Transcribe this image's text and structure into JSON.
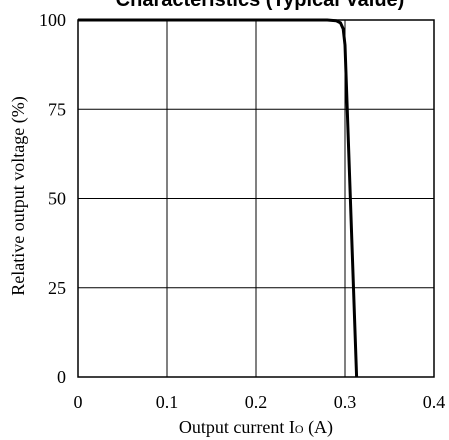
{
  "chart_data": {
    "type": "line",
    "title": "Characteristics (Typical Value)",
    "xlabel": "Output current Io (A)",
    "xlabel_main": "Output current I",
    "xlabel_sub": "O",
    "xlabel_unit": " (A)",
    "ylabel": "Relative output voltage (%)",
    "xlim": [
      0,
      0.4
    ],
    "ylim": [
      0,
      100
    ],
    "x_ticks": [
      0,
      0.1,
      0.2,
      0.3,
      0.4
    ],
    "x_tick_labels": [
      "0",
      "0.1",
      "0.2",
      "0.3",
      "0.4"
    ],
    "y_ticks": [
      0,
      25,
      50,
      75,
      100
    ],
    "y_tick_labels": [
      "0",
      "25",
      "50",
      "75",
      "100"
    ],
    "grid": true,
    "series": [
      {
        "x": [
          0,
          0.28,
          0.29,
          0.295,
          0.298,
          0.3,
          0.313
        ],
        "y": [
          100,
          100,
          99.8,
          99.2,
          97.5,
          93,
          0
        ]
      }
    ]
  }
}
